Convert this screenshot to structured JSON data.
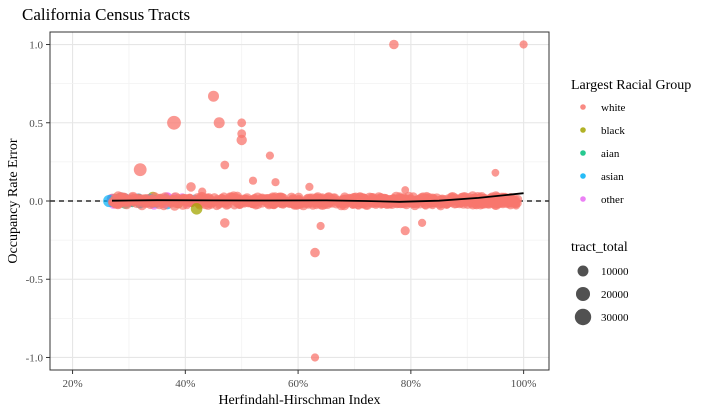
{
  "chart_data": {
    "type": "scatter",
    "title": "California Census Tracts",
    "xlabel": "Herfindahl-Hirschman Index",
    "ylabel": "Occupancy Rate Error",
    "xlim": [
      0.16,
      1.045
    ],
    "ylim": [
      -1.08,
      1.08
    ],
    "x_ticks": [
      0.2,
      0.4,
      0.6,
      0.8,
      1.0
    ],
    "x_tick_labels": [
      "20%",
      "40%",
      "60%",
      "80%",
      "100%"
    ],
    "y_ticks": [
      1.0,
      0.5,
      0.0,
      -0.5,
      -1.0
    ],
    "y_tick_labels": [
      "1.0",
      "0.5",
      "0.0",
      "-0.5",
      "-1.0"
    ],
    "grid": true,
    "reference_line": {
      "y": 0,
      "style": "dashed"
    },
    "color_legend": {
      "title": "Largest Racial Group",
      "placement": "right",
      "entries": [
        {
          "label": "white",
          "color": "#F8766D"
        },
        {
          "label": "black",
          "color": "#A3A500"
        },
        {
          "label": "aian",
          "color": "#00BF7D"
        },
        {
          "label": "asian",
          "color": "#00B0F6"
        },
        {
          "label": "other",
          "color": "#E76BF3"
        }
      ]
    },
    "size_legend": {
      "title": "tract_total",
      "placement": "right",
      "entries": [
        {
          "label": "10000",
          "value": 10000
        },
        {
          "label": "20000",
          "value": 20000
        },
        {
          "label": "30000",
          "value": 30000
        }
      ]
    },
    "trend_line": {
      "x": [
        0.27,
        0.35,
        0.45,
        0.55,
        0.65,
        0.72,
        0.78,
        0.85,
        0.92,
        1.0
      ],
      "y": [
        0.002,
        0.005,
        0.004,
        0.003,
        0.004,
        0.0,
        -0.005,
        0.002,
        0.02,
        0.05
      ]
    },
    "outliers": [
      {
        "x": 0.77,
        "y": 1.0,
        "group": "white",
        "size": 8000
      },
      {
        "x": 1.0,
        "y": 1.0,
        "group": "white",
        "size": 5000
      },
      {
        "x": 0.45,
        "y": 0.67,
        "group": "white",
        "size": 12000
      },
      {
        "x": 0.38,
        "y": 0.5,
        "group": "white",
        "size": 22000
      },
      {
        "x": 0.46,
        "y": 0.5,
        "group": "white",
        "size": 12000
      },
      {
        "x": 0.5,
        "y": 0.5,
        "group": "white",
        "size": 6000
      },
      {
        "x": 0.5,
        "y": 0.43,
        "group": "white",
        "size": 6000
      },
      {
        "x": 0.5,
        "y": 0.39,
        "group": "white",
        "size": 10000
      },
      {
        "x": 0.47,
        "y": 0.23,
        "group": "white",
        "size": 6000
      },
      {
        "x": 0.55,
        "y": 0.29,
        "group": "white",
        "size": 5000
      },
      {
        "x": 0.32,
        "y": 0.2,
        "group": "white",
        "size": 18000
      },
      {
        "x": 0.52,
        "y": 0.13,
        "group": "white",
        "size": 5000
      },
      {
        "x": 0.56,
        "y": 0.12,
        "group": "white",
        "size": 5000
      },
      {
        "x": 0.95,
        "y": 0.18,
        "group": "white",
        "size": 4000
      },
      {
        "x": 0.62,
        "y": 0.09,
        "group": "white",
        "size": 5000
      },
      {
        "x": 0.41,
        "y": 0.09,
        "group": "white",
        "size": 8000
      },
      {
        "x": 0.79,
        "y": 0.07,
        "group": "white",
        "size": 4000
      },
      {
        "x": 0.43,
        "y": 0.06,
        "group": "white",
        "size": 5000
      },
      {
        "x": 0.47,
        "y": -0.14,
        "group": "white",
        "size": 8000
      },
      {
        "x": 0.64,
        "y": -0.16,
        "group": "white",
        "size": 5000
      },
      {
        "x": 0.82,
        "y": -0.14,
        "group": "white",
        "size": 5000
      },
      {
        "x": 0.79,
        "y": -0.19,
        "group": "white",
        "size": 7000
      },
      {
        "x": 0.63,
        "y": -0.33,
        "group": "white",
        "size": 8000
      },
      {
        "x": 0.63,
        "y": -1.0,
        "group": "white",
        "size": 5000
      },
      {
        "x": 0.42,
        "y": -0.05,
        "group": "black",
        "size": 14000
      }
    ]
  }
}
